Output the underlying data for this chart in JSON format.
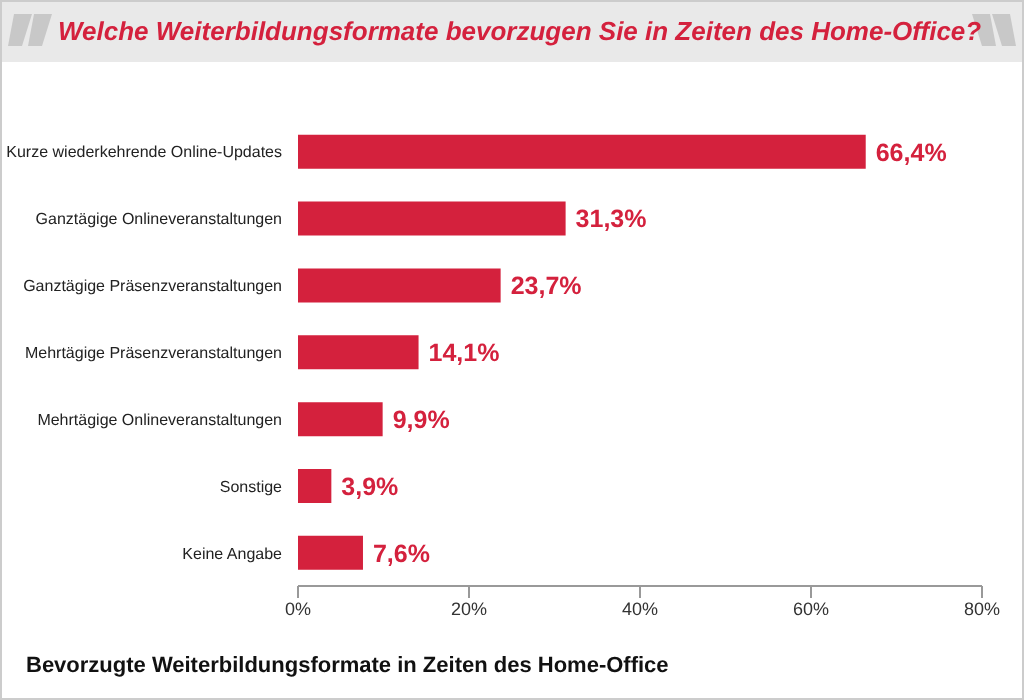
{
  "chart_data": {
    "type": "bar",
    "orientation": "horizontal",
    "title": "Welche Weiterbildungsformate bevorzugen Sie in Zeiten des Home-Office?",
    "categories": [
      "Kurze wiederkehrende Online-Updates",
      "Ganztägige Onlineveranstaltungen",
      "Ganztägige Präsenzveranstaltungen",
      "Mehrtägige Präsenzveranstaltungen",
      "Mehrtägige Onlineveranstaltungen",
      "Sonstige",
      "Keine Angabe"
    ],
    "values": [
      66.4,
      31.3,
      23.7,
      14.1,
      9.9,
      3.9,
      7.6
    ],
    "value_labels": [
      "66,4%",
      "31,3%",
      "23,7%",
      "14,1%",
      "9,9%",
      "3,9%",
      "7,6%"
    ],
    "color": "#d4213d",
    "xlim": [
      0,
      80
    ],
    "xticks": [
      {
        "value": 0,
        "label": "0%"
      },
      {
        "value": 20,
        "label": "20%"
      },
      {
        "value": 40,
        "label": "40%"
      },
      {
        "value": 60,
        "label": "60%"
      },
      {
        "value": 80,
        "label": "80%"
      }
    ],
    "grid": false,
    "legend": false,
    "annotations": [
      "Bevorzugte Weiterbildungsformate in Zeiten des Home-Office"
    ]
  }
}
